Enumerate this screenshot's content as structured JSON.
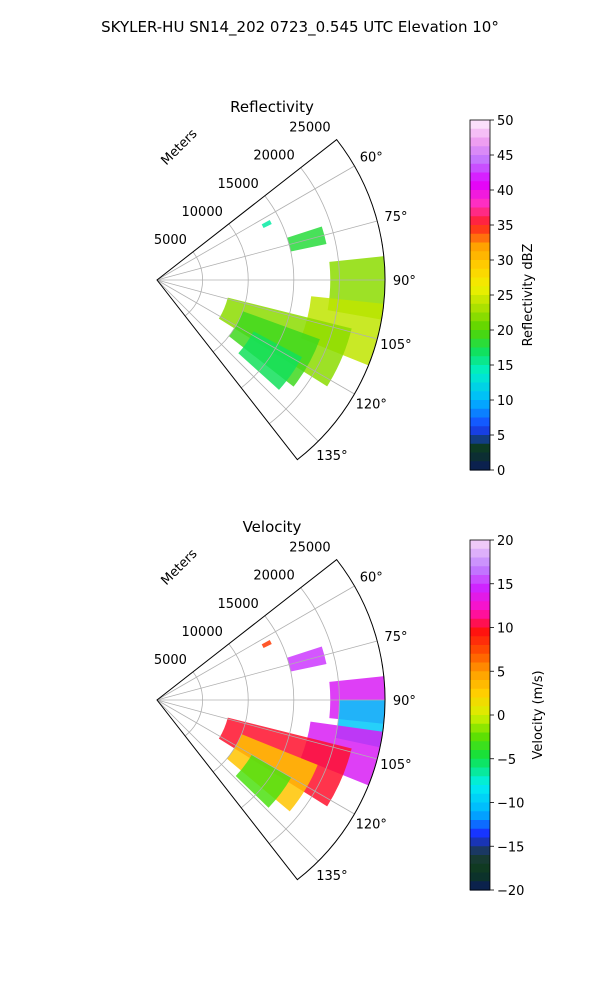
{
  "suptitle": "SKYLER-HU  SN14_202  0723_0.545 UTC Elevation 10°",
  "chart_data": [
    {
      "type": "heatmap",
      "projection": "polar-sector",
      "title": "Reflectivity",
      "range_axis_label": "Meters",
      "range_ticks": [
        5000,
        10000,
        15000,
        20000,
        25000
      ],
      "range_tick_labels": [
        "5000",
        "10000",
        "15000",
        "20000",
        "25000"
      ],
      "range_lim": [
        0,
        25000
      ],
      "azimuth_lim": [
        52,
        142
      ],
      "azimuth_ticks": [
        60,
        75,
        90,
        105,
        120,
        135
      ],
      "azimuth_tick_labels": [
        "60°",
        "75°",
        "90°",
        "105°",
        "120°",
        "135°"
      ],
      "colorbar": {
        "label": "Reflectivity dBZ",
        "lim": [
          0,
          50
        ],
        "ticks": [
          0,
          5,
          10,
          15,
          20,
          25,
          30,
          35,
          40,
          45,
          50
        ],
        "tick_labels": [
          "0",
          "5",
          "10",
          "15",
          "20",
          "25",
          "30",
          "35",
          "40",
          "45",
          "50"
        ]
      },
      "echo_regions": [
        {
          "az": [
            72,
            78
          ],
          "range": [
            15000,
            19000
          ],
          "value": 18
        },
        {
          "az": [
            62,
            64
          ],
          "range": [
            13000,
            14000
          ],
          "value": 15
        },
        {
          "az": [
            84,
            100
          ],
          "range": [
            19000,
            25000
          ],
          "value": 22
        },
        {
          "az": [
            96,
            112
          ],
          "range": [
            17000,
            25000
          ],
          "value": 24
        },
        {
          "az": [
            104,
            122
          ],
          "range": [
            8000,
            22000
          ],
          "value": 22
        },
        {
          "az": [
            110,
            128
          ],
          "range": [
            10000,
            19000
          ],
          "value": 19
        },
        {
          "az": [
            118,
            132
          ],
          "range": [
            12000,
            18000
          ],
          "value": 17
        }
      ],
      "grid": true
    },
    {
      "type": "heatmap",
      "projection": "polar-sector",
      "title": "Velocity",
      "range_axis_label": "Meters",
      "range_ticks": [
        5000,
        10000,
        15000,
        20000,
        25000
      ],
      "range_tick_labels": [
        "5000",
        "10000",
        "15000",
        "20000",
        "25000"
      ],
      "range_lim": [
        0,
        25000
      ],
      "azimuth_lim": [
        52,
        142
      ],
      "azimuth_ticks": [
        60,
        75,
        90,
        105,
        120,
        135
      ],
      "azimuth_tick_labels": [
        "60°",
        "75°",
        "90°",
        "105°",
        "120°",
        "135°"
      ],
      "colorbar": {
        "label": "Velocity (m/s)",
        "lim": [
          -20,
          20
        ],
        "ticks": [
          -20,
          -15,
          -10,
          -5,
          0,
          5,
          10,
          15,
          20
        ],
        "tick_labels": [
          "−20",
          "−15",
          "−10",
          "−5",
          "0",
          "5",
          "10",
          "15",
          "20"
        ]
      },
      "echo_regions": [
        {
          "az": [
            72,
            78
          ],
          "range": [
            15000,
            19000
          ],
          "value": 15
        },
        {
          "az": [
            62,
            64
          ],
          "range": [
            13000,
            14000
          ],
          "value": 8
        },
        {
          "az": [
            84,
            96
          ],
          "range": [
            19000,
            25000
          ],
          "value": 14
        },
        {
          "az": [
            90,
            102
          ],
          "range": [
            20000,
            25000
          ],
          "value": -10
        },
        {
          "az": [
            98,
            112
          ],
          "range": [
            17000,
            25000
          ],
          "value": 14
        },
        {
          "az": [
            104,
            122
          ],
          "range": [
            8000,
            22000
          ],
          "value": 10
        },
        {
          "az": [
            112,
            130
          ],
          "range": [
            10000,
            19000
          ],
          "value": 3
        },
        {
          "az": [
            120,
            134
          ],
          "range": [
            12000,
            17000
          ],
          "value": -3
        }
      ],
      "grid": true
    }
  ]
}
